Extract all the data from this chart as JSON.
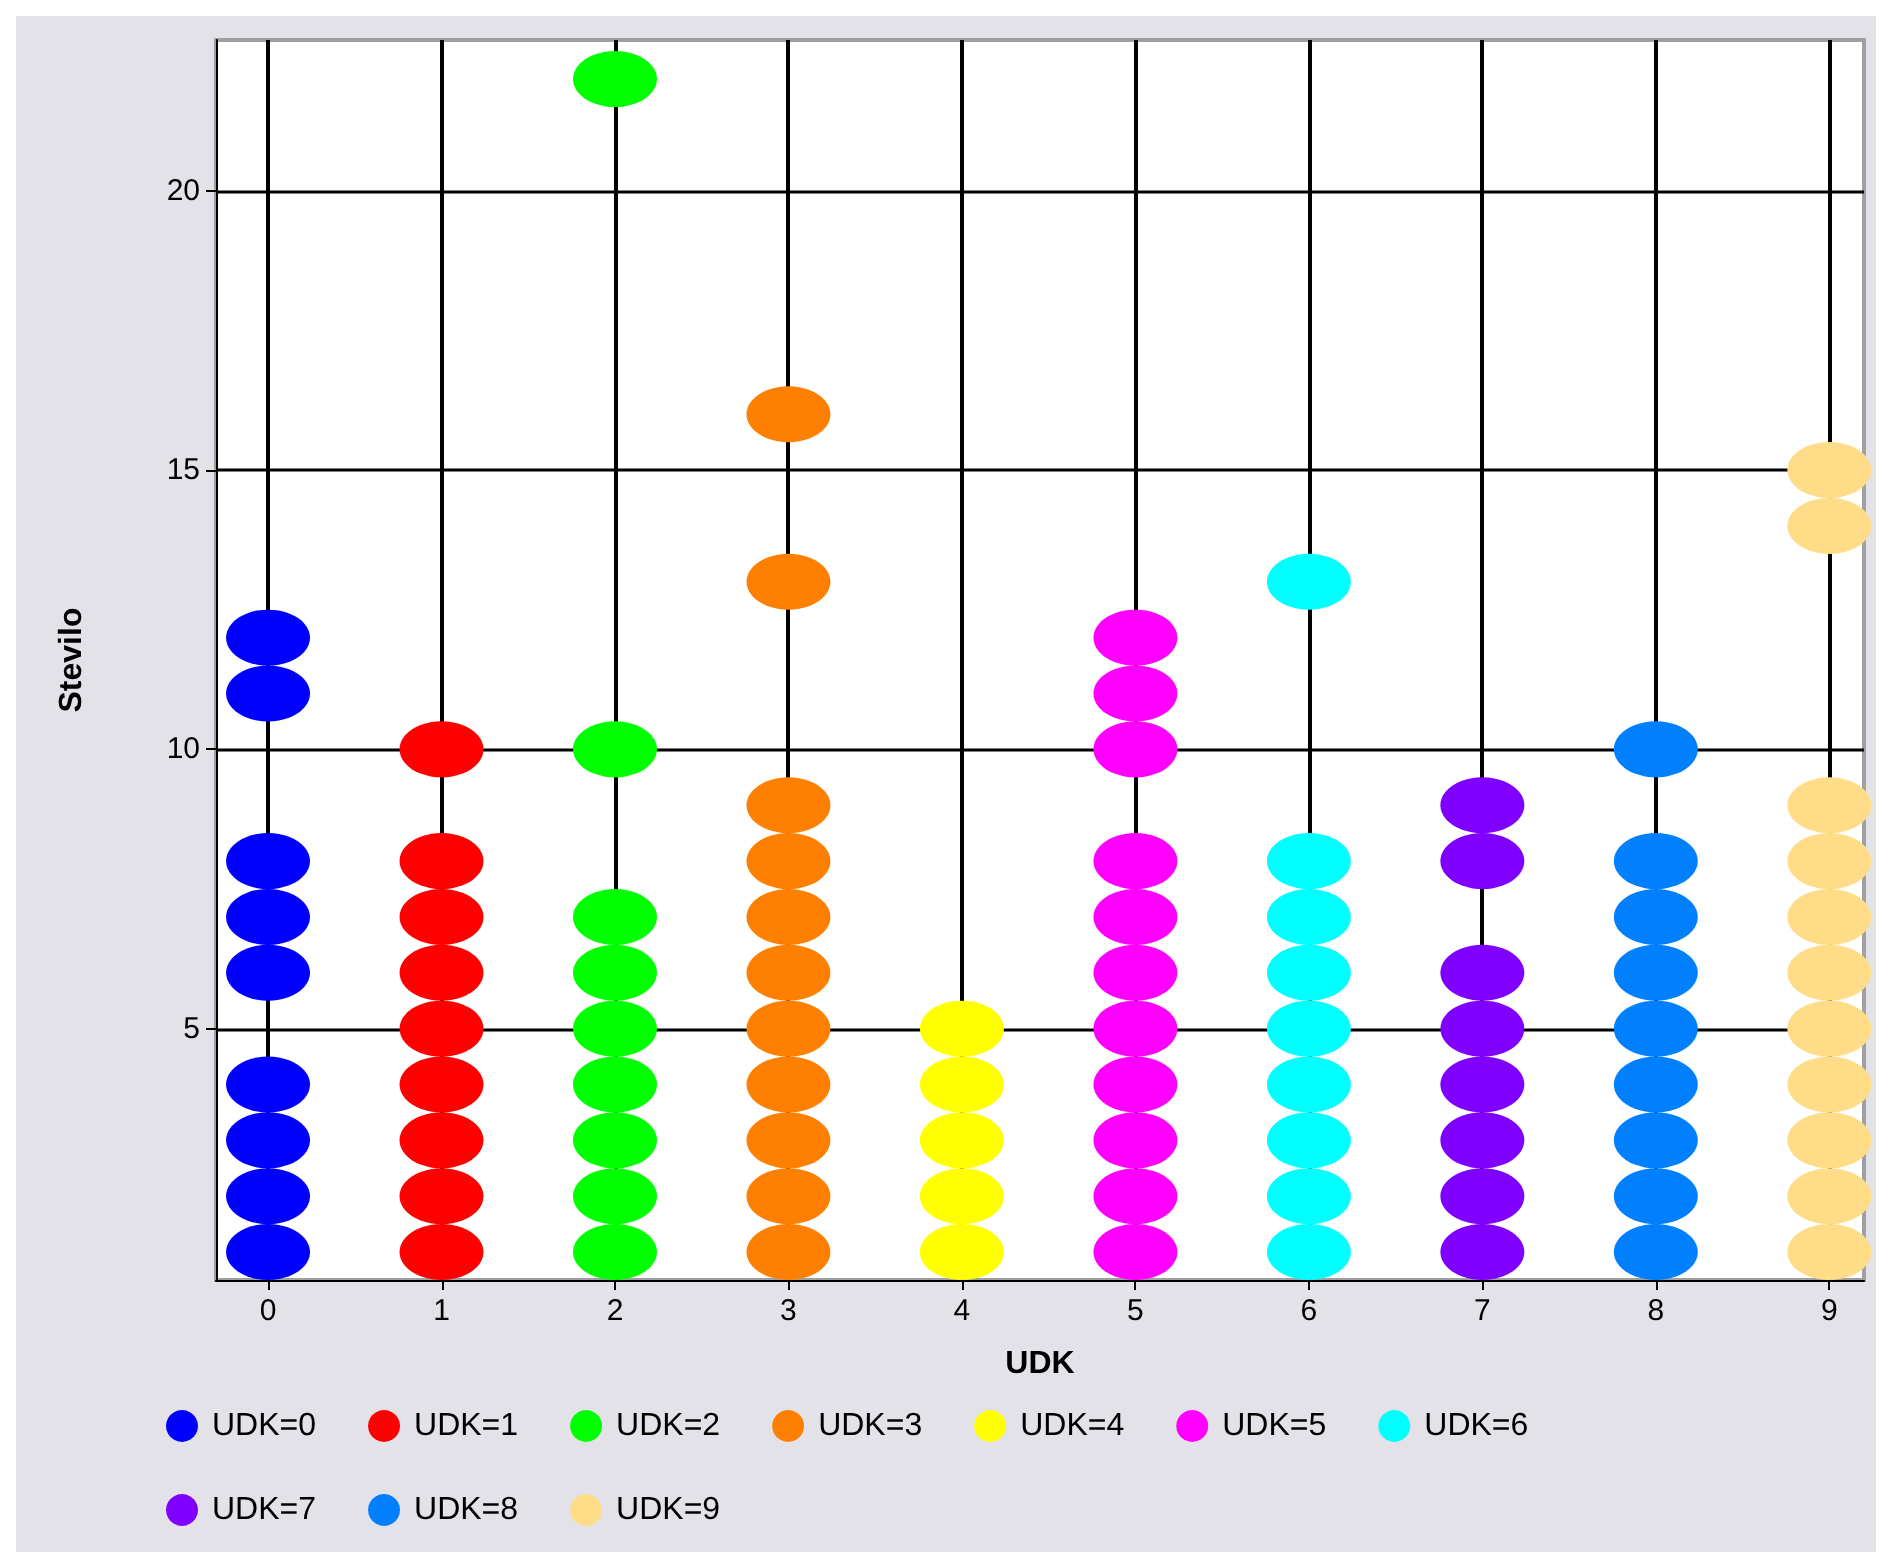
{
  "chart_data": {
    "type": "scatter",
    "xlabel": "UDK",
    "ylabel": "Stevilo",
    "xlim": [
      -0.3,
      9.2
    ],
    "xticks": [
      0,
      1,
      2,
      3,
      4,
      5,
      6,
      7,
      8,
      9
    ],
    "ylim": [
      0.5,
      22.7
    ],
    "yticks": [
      5,
      10,
      15,
      20
    ],
    "grid": true,
    "legend": "bottom",
    "marker": "circle",
    "series": [
      {
        "name": "UDK=0",
        "color": "#0000ff",
        "x": [
          0,
          0,
          0,
          0,
          0,
          0,
          0,
          0,
          0
        ],
        "values": [
          1,
          2,
          3,
          4,
          6,
          7,
          8,
          11,
          12
        ]
      },
      {
        "name": "UDK=1",
        "color": "#ff0000",
        "x": [
          1,
          1,
          1,
          1,
          1,
          1,
          1,
          1,
          1
        ],
        "values": [
          1,
          2,
          3,
          4,
          5,
          6,
          7,
          8,
          10
        ]
      },
      {
        "name": "UDK=2",
        "color": "#00ff00",
        "x": [
          2,
          2,
          2,
          2,
          2,
          2,
          2,
          2,
          2
        ],
        "values": [
          1,
          2,
          3,
          4,
          5,
          6,
          7,
          10,
          22
        ]
      },
      {
        "name": "UDK=3",
        "color": "#ff8000",
        "x": [
          3,
          3,
          3,
          3,
          3,
          3,
          3,
          3,
          3,
          3,
          3
        ],
        "values": [
          1,
          2,
          3,
          4,
          5,
          6,
          7,
          8,
          9,
          13,
          16
        ]
      },
      {
        "name": "UDK=4",
        "color": "#ffff00",
        "x": [
          4,
          4,
          4,
          4,
          4
        ],
        "values": [
          1,
          2,
          3,
          4,
          5
        ]
      },
      {
        "name": "UDK=5",
        "color": "#ff00ff",
        "x": [
          5,
          5,
          5,
          5,
          5,
          5,
          5,
          5,
          5,
          5,
          5
        ],
        "values": [
          1,
          2,
          3,
          4,
          5,
          6,
          7,
          8,
          10,
          11,
          12
        ]
      },
      {
        "name": "UDK=6",
        "color": "#00ffff",
        "x": [
          6,
          6,
          6,
          6,
          6,
          6,
          6,
          6,
          6
        ],
        "values": [
          1,
          2,
          3,
          4,
          5,
          6,
          7,
          8,
          13
        ]
      },
      {
        "name": "UDK=7",
        "color": "#8000ff",
        "x": [
          7,
          7,
          7,
          7,
          7,
          7,
          7,
          7
        ],
        "values": [
          1,
          2,
          3,
          4,
          5,
          6,
          8,
          9
        ]
      },
      {
        "name": "UDK=8",
        "color": "#0080ff",
        "x": [
          8,
          8,
          8,
          8,
          8,
          8,
          8,
          8,
          8
        ],
        "values": [
          1,
          2,
          3,
          4,
          5,
          6,
          7,
          8,
          10
        ]
      },
      {
        "name": "UDK=9",
        "color": "#ffdd88",
        "x": [
          9,
          9,
          9,
          9,
          9,
          9,
          9,
          9,
          9,
          9,
          9
        ],
        "values": [
          1,
          2,
          3,
          4,
          5,
          6,
          7,
          8,
          9,
          14,
          15
        ]
      }
    ]
  }
}
